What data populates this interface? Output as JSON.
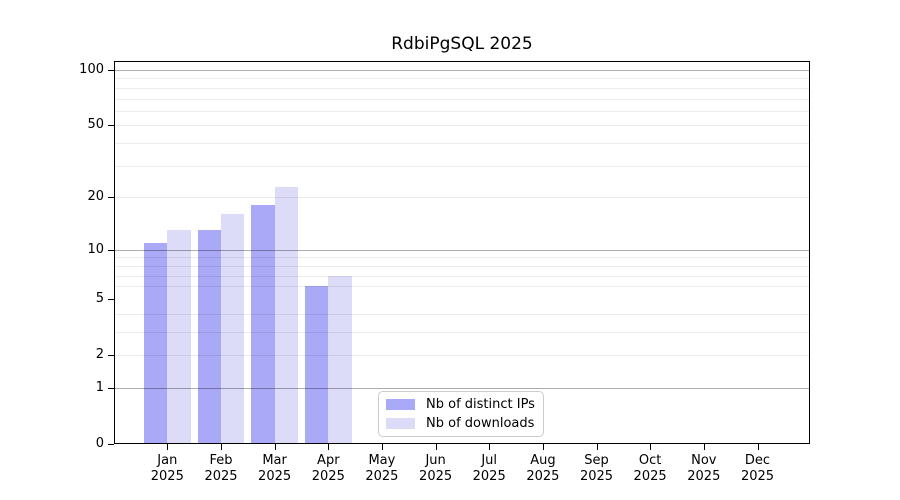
{
  "title": "RdbiPgSQL 2025",
  "chart_data": {
    "type": "bar",
    "title": "RdbiPgSQL 2025",
    "categories": [
      "Jan",
      "Feb",
      "Mar",
      "Apr",
      "May",
      "Jun",
      "Jul",
      "Aug",
      "Sep",
      "Oct",
      "Nov",
      "Dec"
    ],
    "category_year": "2025",
    "series": [
      {
        "name": "Nb of distinct IPs",
        "color": "#a9a9f7",
        "values": [
          11,
          13,
          18,
          6,
          0,
          0,
          0,
          0,
          0,
          0,
          0,
          0
        ]
      },
      {
        "name": "Nb of downloads",
        "color": "#dcdcf9",
        "values": [
          13,
          16,
          23,
          7,
          0,
          0,
          0,
          0,
          0,
          0,
          0,
          0
        ]
      }
    ],
    "yaxis": {
      "scale": "log1p",
      "tick_values": [
        100,
        50,
        20,
        10,
        5,
        2,
        1,
        0
      ],
      "tick_labels": [
        "100",
        "50",
        "20",
        "10",
        "5",
        "2",
        "1",
        "0"
      ],
      "major_gridlines": [
        1,
        10,
        100
      ],
      "minor_gridlines": [
        2,
        3,
        4,
        6,
        7,
        8,
        9,
        20,
        30,
        40,
        50,
        60,
        70,
        80,
        90
      ],
      "ylim": [
        0,
        110
      ]
    },
    "grid": true,
    "legend_position": "bottom-center"
  },
  "colors": {
    "major_grid": "rgba(0,0,0,0.32)",
    "minor_grid": "rgba(0,0,0,0.08)",
    "axis": "#000000",
    "legend_border": "#cccccc"
  }
}
